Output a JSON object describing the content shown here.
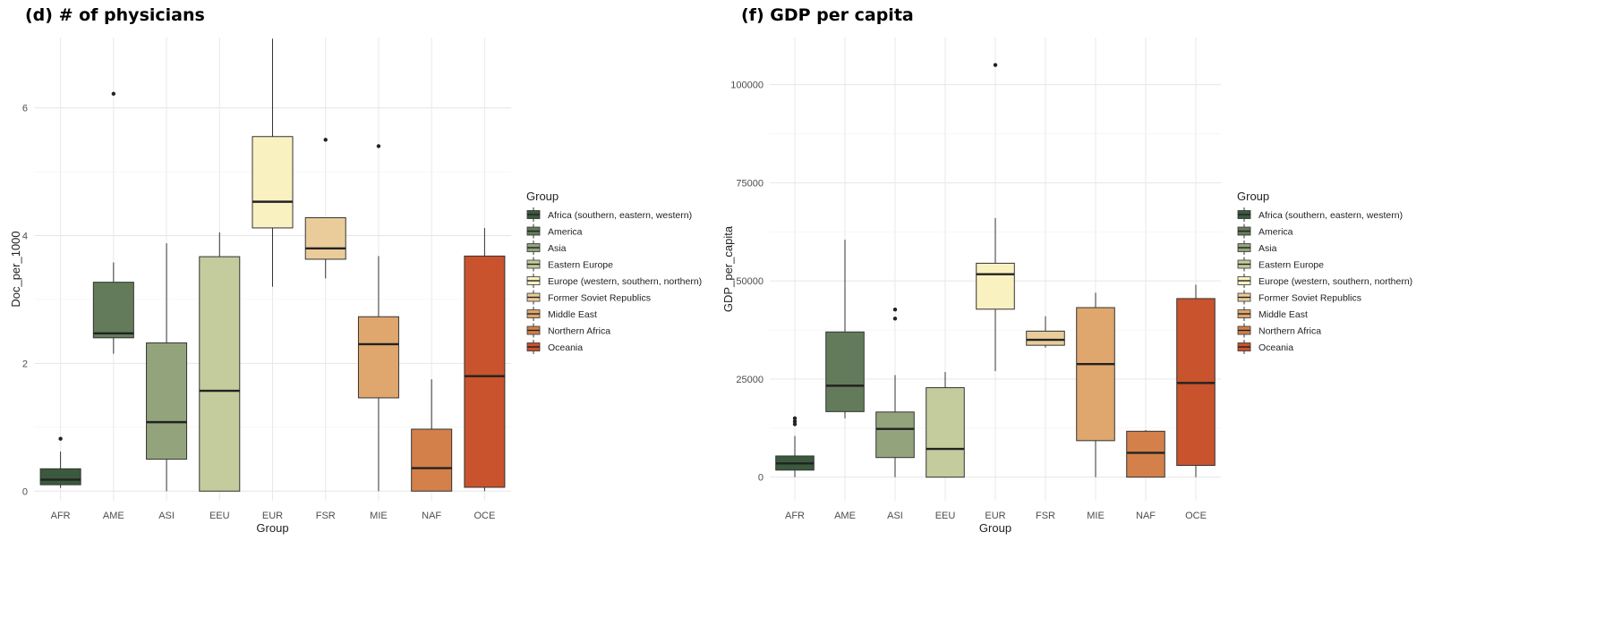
{
  "legend": {
    "title": "Group",
    "items": [
      {
        "label": "Africa (southern, eastern, western)",
        "color": "#3b5a3d"
      },
      {
        "label": "America",
        "color": "#637b5a"
      },
      {
        "label": "Asia",
        "color": "#93a47d"
      },
      {
        "label": "Eastern Europe",
        "color": "#c4cb9d"
      },
      {
        "label": "Europe (western, southern, northern)",
        "color": "#faf1c1"
      },
      {
        "label": "Former Soviet Republics",
        "color": "#e9cc9a"
      },
      {
        "label": "Middle East",
        "color": "#dfa66d"
      },
      {
        "label": "Northern Africa",
        "color": "#d4804a"
      },
      {
        "label": "Oceania",
        "color": "#c8532c"
      }
    ]
  },
  "chart_data": [
    {
      "type": "boxplot",
      "title": "(d) # of physicians",
      "xlabel": "Group",
      "ylabel": "Doc_per_1000",
      "ylim": [
        -0.15,
        7.1
      ],
      "yticks": [
        0,
        2,
        4,
        6
      ],
      "ytick_labels": [
        "0",
        "2",
        "4",
        "6"
      ],
      "categories": [
        "AFR",
        "AME",
        "ASI",
        "EEU",
        "EUR",
        "FSR",
        "MIE",
        "NAF",
        "OCE"
      ],
      "boxes": [
        {
          "min": 0.05,
          "q1": 0.1,
          "median": 0.18,
          "q3": 0.35,
          "max": 0.62,
          "outliers": [
            0.82
          ]
        },
        {
          "min": 2.15,
          "q1": 2.4,
          "median": 2.47,
          "q3": 3.27,
          "max": 3.58,
          "outliers": [
            6.22
          ]
        },
        {
          "min": 0.0,
          "q1": 0.5,
          "median": 1.08,
          "q3": 2.32,
          "max": 3.88,
          "outliers": []
        },
        {
          "min": 0.0,
          "q1": 0.0,
          "median": 1.57,
          "q3": 3.67,
          "max": 4.05,
          "outliers": []
        },
        {
          "min": 3.2,
          "q1": 4.12,
          "median": 4.53,
          "q3": 5.55,
          "max": 7.08,
          "outliers": []
        },
        {
          "min": 3.33,
          "q1": 3.63,
          "median": 3.8,
          "q3": 4.28,
          "max": 4.28,
          "outliers": [
            5.5
          ]
        },
        {
          "min": 0.0,
          "q1": 1.46,
          "median": 2.3,
          "q3": 2.73,
          "max": 3.68,
          "outliers": [
            5.4
          ]
        },
        {
          "min": 0.0,
          "q1": 0.0,
          "median": 0.36,
          "q3": 0.97,
          "max": 1.75,
          "outliers": []
        },
        {
          "min": 0.0,
          "q1": 0.06,
          "median": 1.8,
          "q3": 3.68,
          "max": 4.12,
          "outliers": []
        }
      ]
    },
    {
      "type": "boxplot",
      "title": "(f) GDP per capita",
      "xlabel": "Group",
      "ylabel": "GDP_per_capita",
      "ylim": [
        -6000,
        112000
      ],
      "yticks": [
        0,
        25000,
        50000,
        75000,
        100000
      ],
      "ytick_labels": [
        "0",
        "25000",
        "50000",
        "75000",
        "100000"
      ],
      "categories": [
        "AFR",
        "AME",
        "ASI",
        "EEU",
        "EUR",
        "FSR",
        "MIE",
        "NAF",
        "OCE"
      ],
      "boxes": [
        {
          "min": 0,
          "q1": 1800,
          "median": 3500,
          "q3": 5400,
          "max": 10500,
          "outliers": [
            13500,
            14200,
            15000
          ]
        },
        {
          "min": 15000,
          "q1": 16700,
          "median": 23300,
          "q3": 37000,
          "max": 60500,
          "outliers": []
        },
        {
          "min": 0,
          "q1": 5000,
          "median": 12300,
          "q3": 16600,
          "max": 26000,
          "outliers": [
            40400,
            42700
          ]
        },
        {
          "min": 0,
          "q1": 0,
          "median": 7200,
          "q3": 22800,
          "max": 26800,
          "outliers": []
        },
        {
          "min": 27000,
          "q1": 42800,
          "median": 51700,
          "q3": 54500,
          "max": 66000,
          "outliers": [
            105000
          ]
        },
        {
          "min": 33000,
          "q1": 33600,
          "median": 35000,
          "q3": 37200,
          "max": 41000,
          "outliers": []
        },
        {
          "min": 0,
          "q1": 9300,
          "median": 28800,
          "q3": 43200,
          "max": 47000,
          "outliers": []
        },
        {
          "min": 0,
          "q1": 0,
          "median": 6200,
          "q3": 11700,
          "max": 12000,
          "outliers": []
        },
        {
          "min": 0,
          "q1": 3000,
          "median": 24000,
          "q3": 45500,
          "max": 49000,
          "outliers": []
        }
      ]
    }
  ]
}
